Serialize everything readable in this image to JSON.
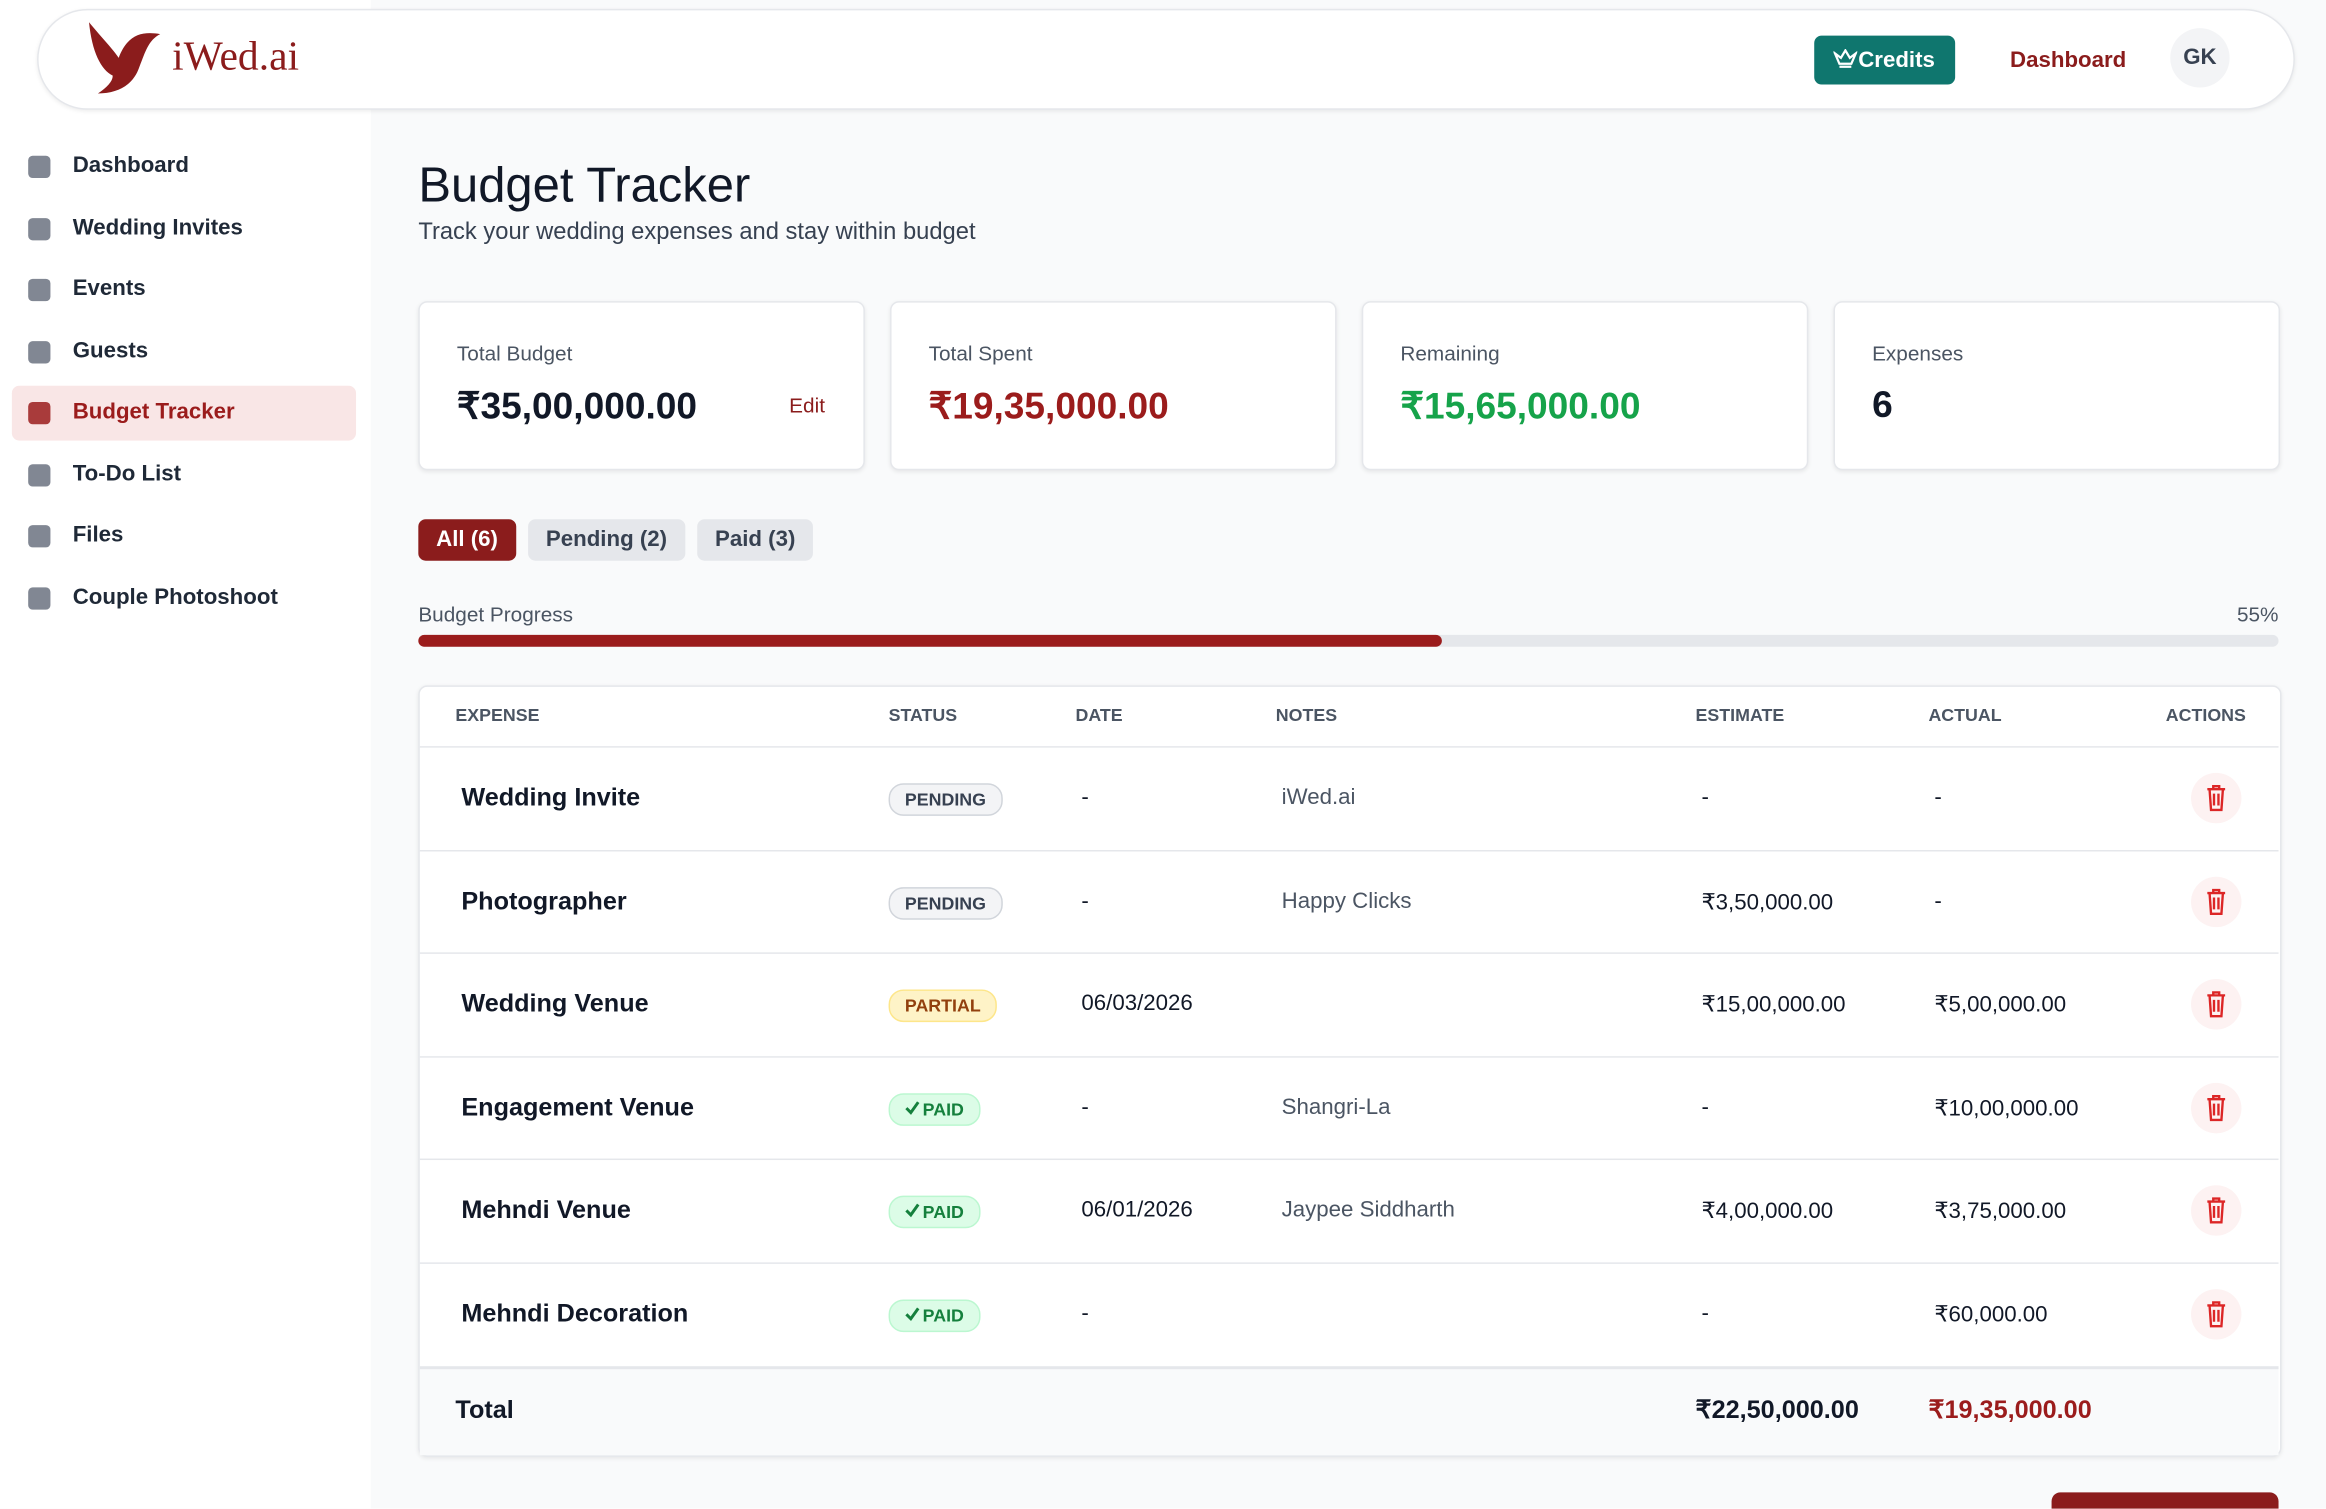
{
  "header": {
    "brand": "iWed.ai",
    "credits": "Credits",
    "dashboard": "Dashboard",
    "avatar": "GK"
  },
  "sidebar": {
    "items": [
      "Dashboard",
      "Wedding Invites",
      "Events",
      "Guests",
      "Budget Tracker",
      "To-Do List",
      "Files",
      "Couple Photoshoot"
    ],
    "active": 4
  },
  "page": {
    "title": "Budget Tracker",
    "subtitle": "Track your wedding expenses and stay within budget"
  },
  "cards": [
    {
      "label": "Total Budget",
      "value": "₹35,00,000.00",
      "action": "Edit",
      "color": "#111827"
    },
    {
      "label": "Total Spent",
      "value": "₹19,35,000.00",
      "color": "#9b1c1c"
    },
    {
      "label": "Remaining",
      "value": "₹15,65,000.00",
      "color": "#16a34a"
    },
    {
      "label": "Expenses",
      "value": "6",
      "color": "#111827"
    }
  ],
  "filters": [
    "All (6)",
    "Pending (2)",
    "Paid (3)"
  ],
  "progress": {
    "label": "Budget Progress",
    "percent": 55,
    "percent_label": "55%"
  },
  "table": {
    "columns": [
      "EXPENSE",
      "STATUS",
      "DATE",
      "NOTES",
      "ESTIMATE",
      "ACTUAL",
      "ACTIONS"
    ],
    "rows": [
      [
        "Wedding Invite",
        "PENDING",
        "-",
        "iWed.ai",
        "-",
        "-"
      ],
      [
        "Photographer",
        "PENDING",
        "-",
        "Happy Clicks",
        "₹3,50,000.00",
        "-"
      ],
      [
        "Wedding Venue",
        "PARTIAL",
        "06/03/2026",
        null,
        "₹15,00,000.00",
        "₹5,00,000.00"
      ],
      [
        "Engagement Venue",
        "PAID",
        "-",
        "Shangri-La",
        "-",
        "₹10,00,000.00"
      ],
      [
        "Mehndi Venue",
        "PAID",
        "06/01/2026",
        "Jaypee Siddharth",
        "₹4,00,000.00",
        "₹3,75,000.00"
      ],
      [
        "Mehndi Decoration",
        "PAID",
        "-",
        null,
        "-",
        "₹60,000.00"
      ]
    ],
    "total": {
      "label": "Total",
      "estimate": "₹22,50,000.00",
      "actual": "₹19,35,000.00"
    }
  }
}
